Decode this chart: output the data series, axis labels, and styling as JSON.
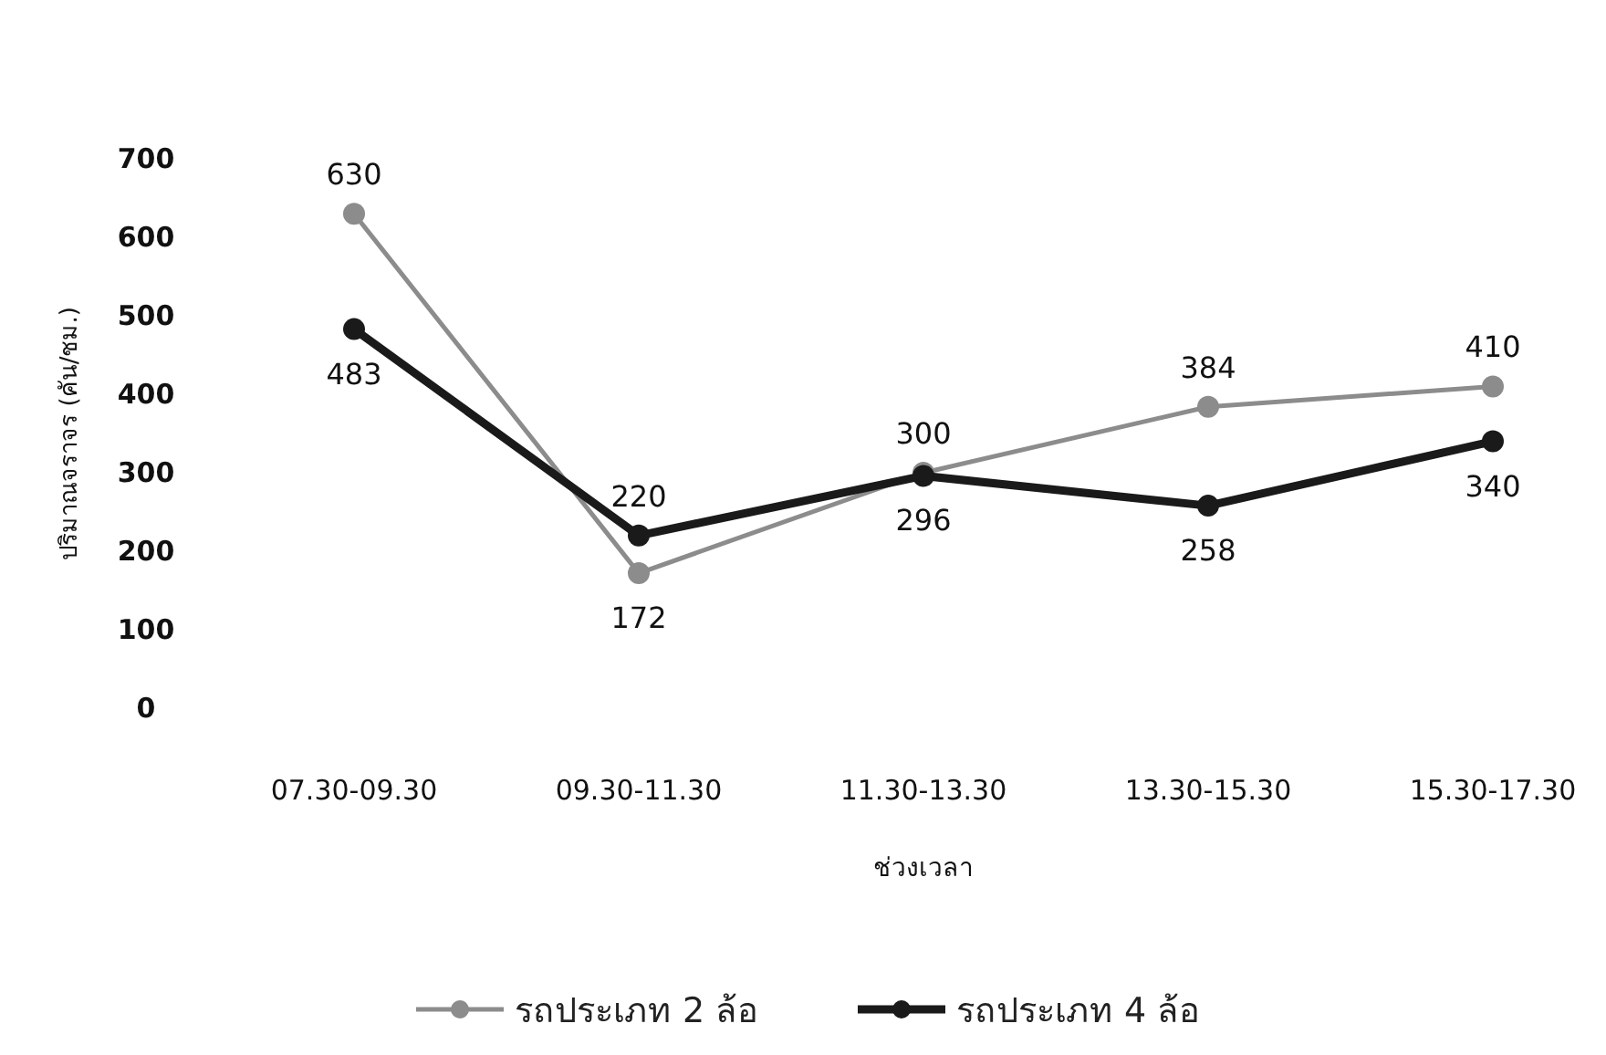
{
  "chart_data": {
    "type": "line",
    "xlabel": "ช่วงเวลา",
    "ylabel": "ปริมาณจราจร (คัน/ชม.)",
    "categories": [
      "07.30-09.30",
      "09.30-11.30",
      "11.30-13.30",
      "13.30-15.30",
      "15.30-17.30"
    ],
    "series": [
      {
        "name": "รถประเภท 2 ล้อ",
        "color": "#8c8c8c",
        "values": [
          630,
          172,
          300,
          384,
          410
        ]
      },
      {
        "name": "รถประเภท 4 ล้อ",
        "color": "#1a1a1a",
        "values": [
          483,
          220,
          296,
          258,
          340
        ]
      }
    ],
    "ylim": [
      0,
      700
    ],
    "yticks": [
      0,
      100,
      200,
      300,
      400,
      500,
      600,
      700
    ],
    "marker": "circle",
    "data_labels": true,
    "legend": "bottom",
    "grid": false
  }
}
